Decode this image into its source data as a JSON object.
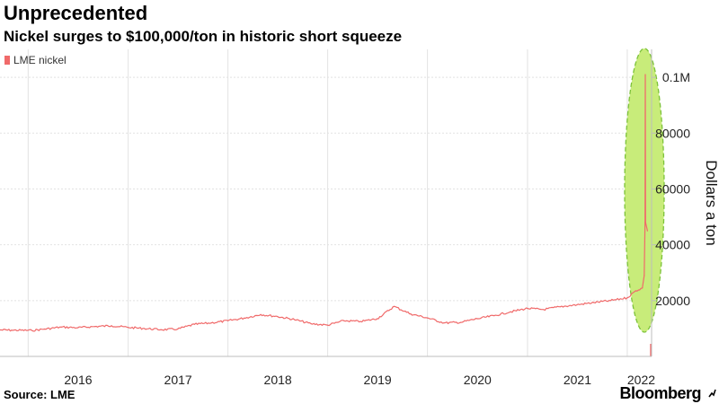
{
  "header": {
    "title": "Unprecedented",
    "subtitle": "Nickel surges to $100,000/ton in historic short squeeze"
  },
  "footer": {
    "source": "Source: LME",
    "brand": "Bloomberg"
  },
  "colors": {
    "series": "#f06a6a",
    "highlight_fill": "#c8ec7a",
    "highlight_stroke": "#7cc23a",
    "grid": "#e2e2e2"
  },
  "chart_data": {
    "type": "line",
    "title": "Unprecedented",
    "subtitle": "Nickel surges to $100,000/ton in historic short squeeze",
    "xlabel": "",
    "ylabel": "Dollars a ton",
    "ylim": [
      0,
      110000
    ],
    "xlim": [
      "2015-09-20",
      "2022-03-31"
    ],
    "y_ticks": [
      {
        "value": 20000,
        "label": "20000"
      },
      {
        "value": 40000,
        "label": "40000"
      },
      {
        "value": 60000,
        "label": "60000"
      },
      {
        "value": 80000,
        "label": "80000"
      },
      {
        "value": 100000,
        "label": "0.1M"
      }
    ],
    "x_ticks": [
      {
        "date": "2016-01-01",
        "label": "2016"
      },
      {
        "date": "2017-01-01",
        "label": "2017"
      },
      {
        "date": "2018-01-01",
        "label": "2018"
      },
      {
        "date": "2019-01-01",
        "label": "2019"
      },
      {
        "date": "2020-01-01",
        "label": "2020"
      },
      {
        "date": "2021-01-01",
        "label": "2021"
      },
      {
        "date": "2022-01-01",
        "label": "2022"
      }
    ],
    "legend": {
      "position": "top-left",
      "entries": [
        "LME nickel"
      ]
    },
    "grid": true,
    "annotation": {
      "type": "ellipse",
      "label": "",
      "around": "2022-03 spike"
    },
    "series": [
      {
        "name": "LME nickel",
        "x": [
          "2015-09-20",
          "2015-11-01",
          "2016-01-15",
          "2016-03-01",
          "2016-05-01",
          "2016-07-01",
          "2016-09-01",
          "2016-11-01",
          "2017-01-01",
          "2017-03-01",
          "2017-05-01",
          "2017-07-01",
          "2017-09-01",
          "2017-11-01",
          "2018-01-01",
          "2018-03-01",
          "2018-05-01",
          "2018-07-01",
          "2018-09-01",
          "2018-11-01",
          "2019-01-01",
          "2019-03-01",
          "2019-05-01",
          "2019-07-01",
          "2019-09-01",
          "2019-11-01",
          "2020-01-01",
          "2020-03-01",
          "2020-05-01",
          "2020-07-01",
          "2020-09-01",
          "2020-11-01",
          "2021-01-01",
          "2021-03-01",
          "2021-05-01",
          "2021-07-01",
          "2021-09-01",
          "2021-11-01",
          "2022-01-01",
          "2022-02-01",
          "2022-02-25",
          "2022-03-04",
          "2022-03-07",
          "2022-03-08",
          "2022-03-09",
          "2022-03-16"
        ],
        "values": [
          9500,
          9400,
          9300,
          9800,
          10500,
          10300,
          10700,
          11000,
          10400,
          10000,
          9600,
          9800,
          11500,
          12000,
          12800,
          13700,
          15000,
          14300,
          13200,
          11700,
          11200,
          12800,
          12500,
          13500,
          17900,
          15200,
          13800,
          12000,
          12200,
          13500,
          14600,
          16000,
          17200,
          16800,
          17800,
          18500,
          19300,
          20000,
          21000,
          23500,
          24500,
          29000,
          48000,
          101000,
          48000,
          45000
        ]
      }
    ]
  }
}
